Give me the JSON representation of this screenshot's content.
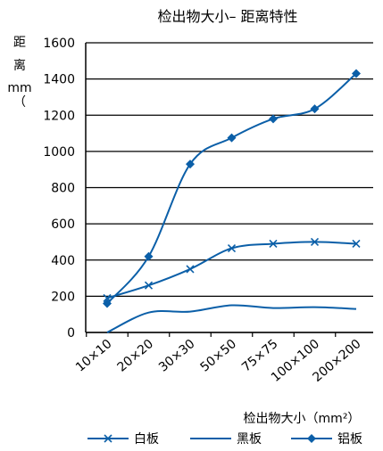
{
  "chart_data": {
    "type": "line",
    "title": "检出物大小– 距离特性",
    "ylabel_lines": [
      "距",
      "离",
      "mm",
      "（"
    ],
    "xlabel": "检出物大小（mm²）",
    "categories": [
      "10×10",
      "20×20",
      "30×30",
      "50×50",
      "75×75",
      "100×100",
      "200×200"
    ],
    "ylim": [
      0,
      1600
    ],
    "yticks": [
      "0",
      "200",
      "400",
      "600",
      "800",
      "1000",
      "1200",
      "1400",
      "1600"
    ],
    "grid": "horizontal",
    "legend_position": "bottom",
    "series": [
      {
        "name": "白板",
        "marker": "x",
        "color": "#0b5fa8",
        "values": [
          190,
          260,
          350,
          465,
          490,
          500,
          490
        ]
      },
      {
        "name": "黑板",
        "marker": "none",
        "color": "#0b5fa8",
        "values": [
          0,
          110,
          115,
          150,
          135,
          140,
          130
        ]
      },
      {
        "name": "铝板",
        "marker": "diamond",
        "color": "#0b5fa8",
        "values": [
          160,
          420,
          930,
          1075,
          1180,
          1235,
          1430
        ]
      }
    ]
  }
}
